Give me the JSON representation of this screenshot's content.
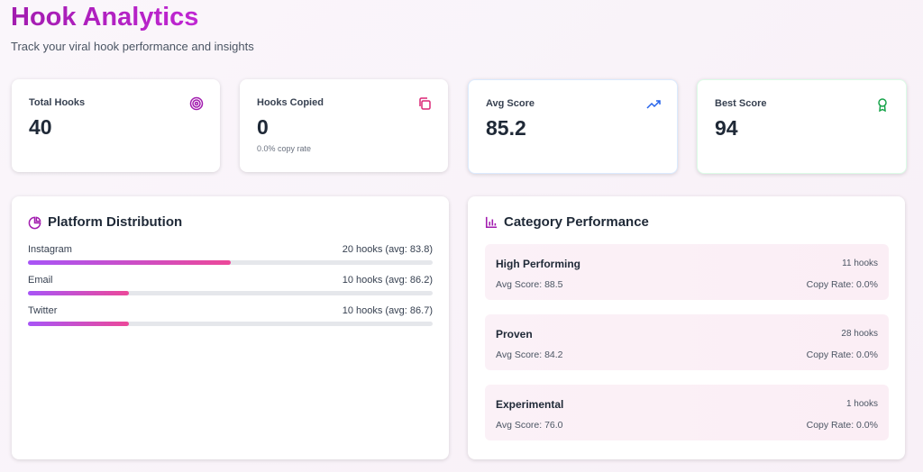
{
  "header": {
    "title": "Hook Analytics",
    "subtitle": "Track your viral hook performance and insights"
  },
  "stats": [
    {
      "label": "Total Hooks",
      "value": 40
    },
    {
      "label": "Hooks Copied",
      "value": 0,
      "note": "0.0% copy rate"
    },
    {
      "label": "Avg Score",
      "value": 85.2
    },
    {
      "label": "Best Score",
      "value": 94
    }
  ],
  "platform_distribution": {
    "title": "Platform Distribution",
    "platforms": [
      {
        "name": "Instagram",
        "count": 20,
        "label": "20 hooks (avg: 83.8)"
      },
      {
        "name": "Email",
        "count": 10,
        "label": "10 hooks (avg: 86.2)"
      },
      {
        "name": "Twitter",
        "count": 10,
        "label": "10 hooks (avg: 86.7)"
      }
    ]
  },
  "category_performance": {
    "title": "Category Performance",
    "categories": [
      {
        "name": "High Performing",
        "hooks": "11 hooks",
        "avg_score": "Avg Score: 88.5",
        "copy_rate": "Copy Rate: 0.0%"
      },
      {
        "name": "Proven",
        "hooks": "28 hooks",
        "avg_score": "Avg Score: 84.2",
        "copy_rate": "Copy Rate: 0.0%"
      },
      {
        "name": "Experimental",
        "hooks": "1 hooks",
        "avg_score": "Avg Score: 76.0",
        "copy_rate": "Copy Rate: 0.0%"
      }
    ]
  }
}
